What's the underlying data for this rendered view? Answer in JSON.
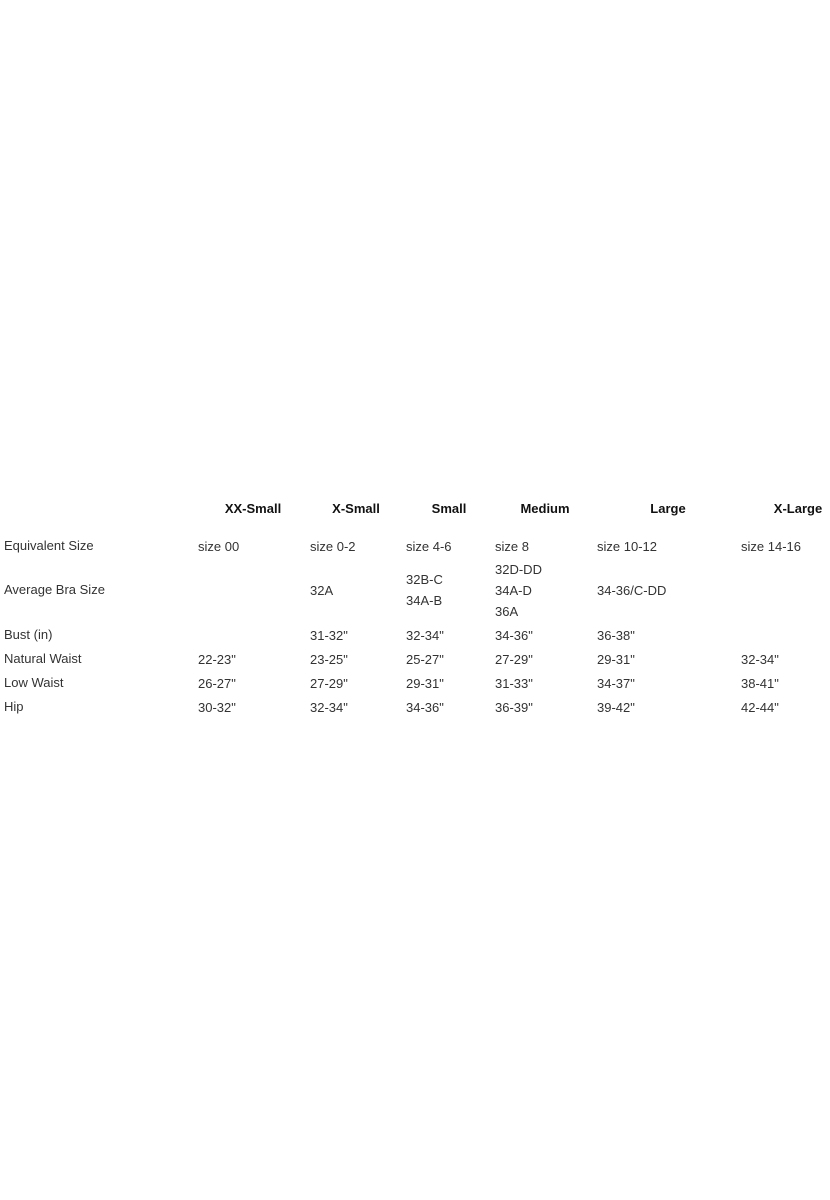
{
  "size_chart": {
    "columns": [
      "XX-Small",
      "X-Small",
      "Small",
      "Medium",
      "Large",
      "X-Large"
    ],
    "rows": [
      {
        "label": "Equivalent Size",
        "values": [
          [
            "size 00"
          ],
          [
            "size 0-2"
          ],
          [
            "size 4-6"
          ],
          [
            "size 8"
          ],
          [
            "size 10-12"
          ],
          [
            "size 14-16"
          ]
        ]
      },
      {
        "label": "Average Bra Size",
        "values": [
          [],
          [
            "32A"
          ],
          [
            "32B-C",
            "34A-B"
          ],
          [
            "32D-DD",
            "34A-D",
            "36A"
          ],
          [
            "34-36/C-DD"
          ],
          []
        ]
      },
      {
        "label": "Bust (in)",
        "values": [
          [],
          [
            "31-32\""
          ],
          [
            "32-34\""
          ],
          [
            "34-36\""
          ],
          [
            "36-38\""
          ],
          []
        ]
      },
      {
        "label": "Natural Waist",
        "values": [
          [
            "22-23\""
          ],
          [
            "23-25\""
          ],
          [
            "25-27\""
          ],
          [
            "27-29\""
          ],
          [
            "29-31\""
          ],
          [
            "32-34\""
          ]
        ]
      },
      {
        "label": "Low Waist",
        "values": [
          [
            "26-27\""
          ],
          [
            "27-29\""
          ],
          [
            "29-31\""
          ],
          [
            "31-33\""
          ],
          [
            "34-37\""
          ],
          [
            "38-41\""
          ]
        ]
      },
      {
        "label": "Hip",
        "values": [
          [
            "30-32\""
          ],
          [
            "32-34\""
          ],
          [
            "34-36\""
          ],
          [
            "36-39\""
          ],
          [
            "39-42\""
          ],
          [
            "42-44\""
          ]
        ]
      }
    ]
  }
}
